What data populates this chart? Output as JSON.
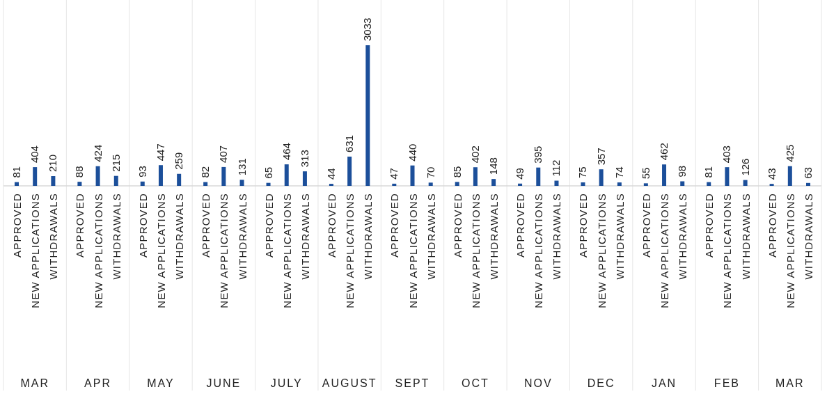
{
  "chart_data": {
    "type": "bar",
    "categories": [
      "MAR",
      "APR",
      "MAY",
      "JUNE",
      "JULY",
      "AUGUST",
      "SEPT",
      "OCT",
      "NOV",
      "DEC",
      "JAN",
      "FEB",
      "MAR"
    ],
    "series": [
      {
        "name": "APPROVED",
        "color": "#1c4f9a",
        "values": [
          81,
          88,
          93,
          82,
          65,
          44,
          47,
          85,
          49,
          75,
          55,
          81,
          43
        ]
      },
      {
        "name": "NEW APPLICATIONS",
        "color": "#1c4f9a",
        "values": [
          404,
          424,
          447,
          407,
          464,
          631,
          440,
          402,
          395,
          357,
          462,
          403,
          425
        ]
      },
      {
        "name": "WITHDRAWALS",
        "color": "#1c4f9a",
        "values": [
          210,
          215,
          259,
          131,
          313,
          3033,
          70,
          148,
          112,
          74,
          98,
          126,
          63
        ]
      }
    ],
    "data_labels": true
  }
}
